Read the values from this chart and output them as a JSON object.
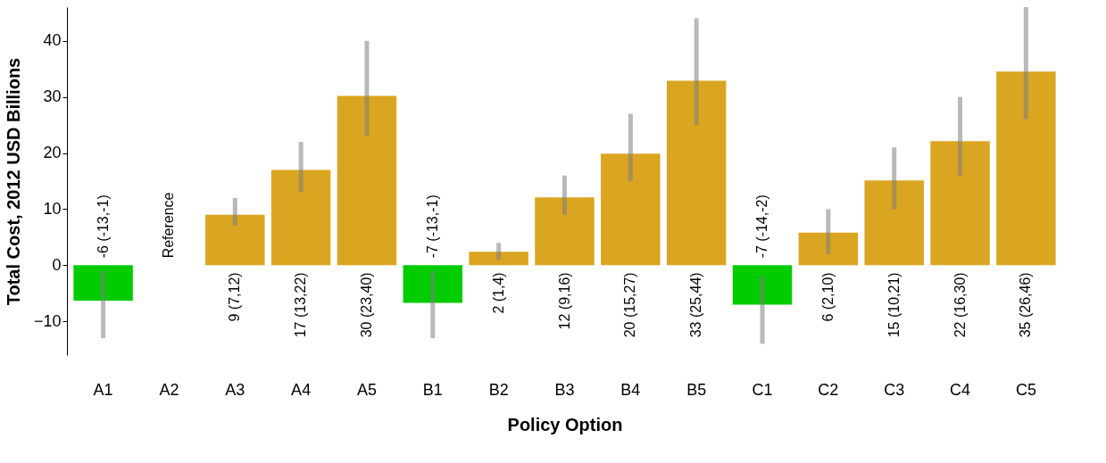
{
  "chart_data": {
    "type": "bar",
    "xlabel": "Policy Option",
    "ylabel": "Total Cost, 2012 USD Billions",
    "categories": [
      "A1",
      "A2",
      "A3",
      "A4",
      "A5",
      "B1",
      "B2",
      "B3",
      "B4",
      "B5",
      "C1",
      "C2",
      "C3",
      "C4",
      "C5"
    ],
    "values": [
      -6.3,
      null,
      9,
      17,
      30.2,
      -6.7,
      2.4,
      12.1,
      19.9,
      32.9,
      -7,
      5.8,
      15.1,
      22.1,
      34.5
    ],
    "colors": [
      "#00cc00",
      "#daa520",
      "#daa520",
      "#daa520",
      "#daa520",
      "#00cc00",
      "#daa520",
      "#daa520",
      "#daa520",
      "#daa520",
      "#00cc00",
      "#daa520",
      "#daa520",
      "#daa520",
      "#daa520"
    ],
    "errors": [
      [
        -13,
        -1
      ],
      null,
      [
        7,
        12
      ],
      [
        13,
        22
      ],
      [
        23,
        40
      ],
      [
        -13,
        -1
      ],
      [
        1,
        4
      ],
      [
        9,
        16
      ],
      [
        15,
        27
      ],
      [
        25,
        44
      ],
      [
        -14,
        -2
      ],
      [
        2,
        10
      ],
      [
        10,
        21
      ],
      [
        16,
        30
      ],
      [
        26,
        46
      ]
    ],
    "value_labels": [
      "-6 (-13,-1)",
      "Reference",
      "9 (7,12)",
      "17 (13,22)",
      "30 (23,40)",
      "-7 (-13,-1)",
      "2 (1,4)",
      "12 (9,16)",
      "20 (15,27)",
      "33 (25,44)",
      "-7 (-14,-2)",
      "6 (2,10)",
      "15 (10,21)",
      "22 (16,30)",
      "35 (26,46)"
    ],
    "ylim": [
      -16,
      46
    ],
    "yticks": [
      -10,
      0,
      10,
      20,
      30,
      40
    ],
    "grid": false
  }
}
